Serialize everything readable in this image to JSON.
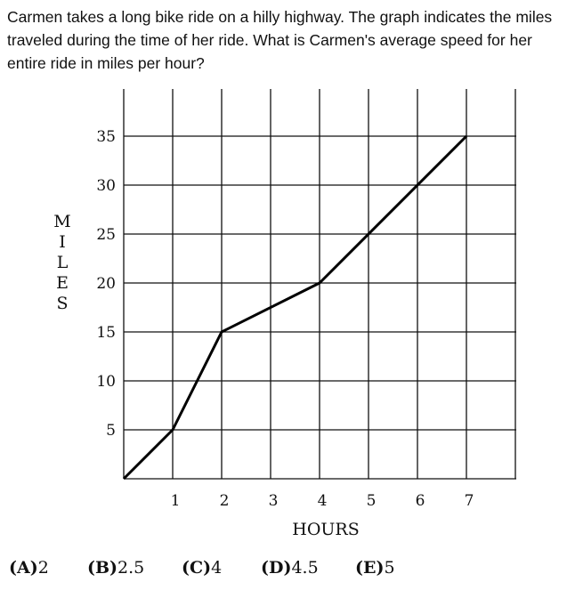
{
  "question": "Carmen takes a long bike ride on a hilly highway. The graph indicates the miles traveled during the time of her ride. What is Carmen's average speed for her entire ride in miles per hour?",
  "chart_data": {
    "type": "line",
    "title": "",
    "xlabel": "HOURS",
    "ylabel": "MILES",
    "x_ticks": [
      "1",
      "2",
      "3",
      "4",
      "5",
      "6",
      "7"
    ],
    "y_ticks": [
      "5",
      "10",
      "15",
      "20",
      "25",
      "30",
      "35"
    ],
    "xlim": [
      0,
      7.5
    ],
    "ylim": [
      0,
      35
    ],
    "grid": true,
    "series": [
      {
        "x": [
          0,
          1,
          2,
          4,
          7
        ],
        "y": [
          0,
          5,
          15,
          20,
          35
        ]
      }
    ]
  },
  "choices": [
    {
      "letter": "(A)",
      "value": "2"
    },
    {
      "letter": "(B)",
      "value": "2.5"
    },
    {
      "letter": "(C)",
      "value": "4"
    },
    {
      "letter": "(D)",
      "value": "4.5"
    },
    {
      "letter": "(E)",
      "value": "5"
    }
  ]
}
